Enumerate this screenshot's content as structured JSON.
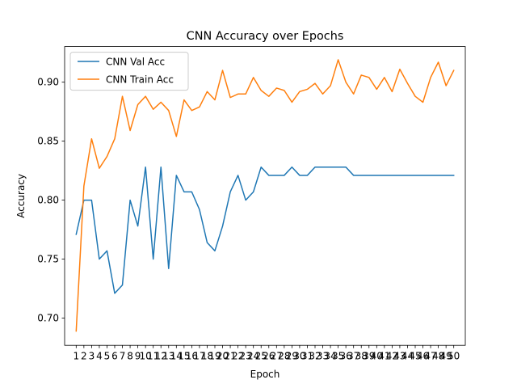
{
  "chart_data": {
    "type": "line",
    "title": "CNN Accuracy over Epochs",
    "xlabel": "Epoch",
    "ylabel": "Accuracy",
    "x": [
      1,
      2,
      3,
      4,
      5,
      6,
      7,
      8,
      9,
      10,
      11,
      12,
      13,
      14,
      15,
      16,
      17,
      18,
      19,
      20,
      21,
      22,
      23,
      24,
      25,
      26,
      27,
      28,
      29,
      30,
      31,
      32,
      33,
      34,
      35,
      36,
      37,
      38,
      39,
      40,
      41,
      42,
      43,
      44,
      45,
      46,
      47,
      48,
      49,
      50
    ],
    "xlim": [
      -0.5,
      51.5
    ],
    "ylim": [
      0.6769,
      0.9302
    ],
    "yticks": [
      0.7,
      0.75,
      0.8,
      0.85,
      0.9
    ],
    "ytick_labels": [
      "0.70",
      "0.75",
      "0.80",
      "0.85",
      "0.90"
    ],
    "legend_position": "upper-left",
    "grid": false,
    "series": [
      {
        "name": "CNN Val Acc",
        "color": "#1f77b4",
        "values": [
          0.771,
          0.8,
          0.8,
          0.75,
          0.757,
          0.721,
          0.728,
          0.8,
          0.778,
          0.828,
          0.75,
          0.828,
          0.742,
          0.821,
          0.807,
          0.807,
          0.792,
          0.764,
          0.757,
          0.778,
          0.807,
          0.821,
          0.8,
          0.807,
          0.828,
          0.821,
          0.821,
          0.821,
          0.828,
          0.821,
          0.821,
          0.828,
          0.828,
          0.828,
          0.828,
          0.828,
          0.821,
          0.821,
          0.821,
          0.821,
          0.821,
          0.821,
          0.821,
          0.821,
          0.821,
          0.821,
          0.821,
          0.821,
          0.821,
          0.821
        ]
      },
      {
        "name": "CNN Train Acc",
        "color": "#ff7f0e",
        "values": [
          0.689,
          0.812,
          0.852,
          0.827,
          0.837,
          0.852,
          0.888,
          0.859,
          0.881,
          0.888,
          0.877,
          0.883,
          0.876,
          0.854,
          0.885,
          0.876,
          0.879,
          0.892,
          0.885,
          0.91,
          0.887,
          0.89,
          0.89,
          0.904,
          0.893,
          0.888,
          0.895,
          0.893,
          0.883,
          0.892,
          0.894,
          0.899,
          0.89,
          0.897,
          0.919,
          0.9,
          0.89,
          0.906,
          0.904,
          0.894,
          0.904,
          0.892,
          0.911,
          0.899,
          0.888,
          0.883,
          0.904,
          0.917,
          0.897,
          0.91
        ]
      }
    ]
  }
}
